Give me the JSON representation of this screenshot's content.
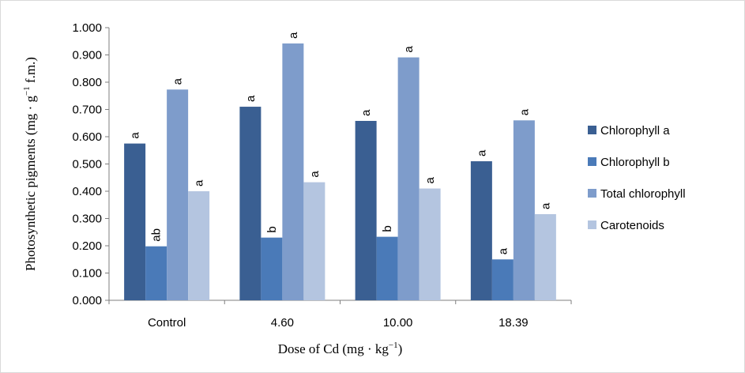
{
  "chart_data": {
    "type": "bar",
    "categories": [
      "Control",
      "4.60",
      "10.00",
      "18.39"
    ],
    "series": [
      {
        "name": "Chlorophyll a",
        "color": "#3a5f92",
        "values": [
          0.575,
          0.71,
          0.658,
          0.51
        ],
        "labels": [
          "a",
          "a",
          "a",
          "a"
        ]
      },
      {
        "name": "Chlorophyll b",
        "color": "#4a7ab8",
        "values": [
          0.198,
          0.23,
          0.233,
          0.15
        ],
        "labels": [
          "ab",
          "b",
          "b",
          "a"
        ]
      },
      {
        "name": "Total chlorophyll",
        "color": "#7e9ccb",
        "values": [
          0.773,
          0.942,
          0.891,
          0.66
        ],
        "labels": [
          "a",
          "a",
          "a",
          "a"
        ]
      },
      {
        "name": "Carotenoids",
        "color": "#b4c5e0",
        "values": [
          0.4,
          0.433,
          0.41,
          0.316
        ],
        "labels": [
          "a",
          "a",
          "a",
          "a"
        ]
      }
    ],
    "yticks": [
      "0.000",
      "0.100",
      "0.200",
      "0.300",
      "0.400",
      "0.500",
      "0.600",
      "0.700",
      "0.800",
      "0.900",
      "1.000"
    ],
    "ylim": [
      0,
      1
    ],
    "xlabel_parts": {
      "pre": "Dose of Cd (mg · kg",
      "sup": "−1",
      "post": ")"
    },
    "ylabel_parts": {
      "pre": "Photosynthetic pigments (mg · g",
      "sup": "−1",
      "post": " f.m.)"
    },
    "grid": false,
    "legend_position": "right"
  }
}
